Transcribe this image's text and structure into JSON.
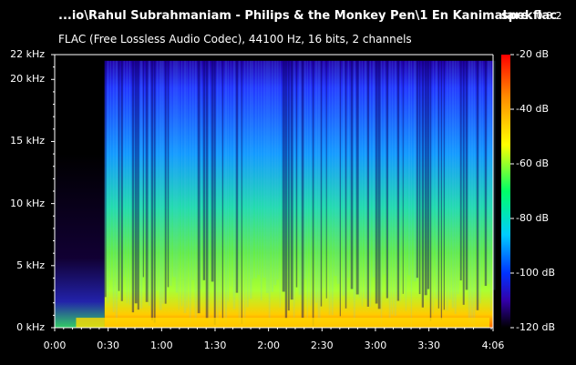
{
  "header": {
    "file_title": "...io\\Rahul Subrahmaniam - Philips & the Monkey Pen\\1 En Kanimalare.flac",
    "app_name": "spek",
    "app_version": "0.8.2",
    "codec_info": "FLAC (Free Lossless Audio Codec), 44100 Hz, 16 bits, 2 channels"
  },
  "frequency_axis": {
    "ticks": [
      "22 kHz",
      "20 kHz",
      "15 kHz",
      "10 kHz",
      "5 kHz",
      "0 kHz"
    ],
    "values_khz": [
      22,
      20,
      15,
      10,
      5,
      0
    ]
  },
  "time_axis": {
    "ticks": [
      "0:00",
      "0:30",
      "1:00",
      "1:30",
      "2:00",
      "2:30",
      "3:00",
      "3:30",
      "4:06"
    ],
    "values_s": [
      0,
      30,
      60,
      90,
      120,
      150,
      180,
      210,
      246
    ]
  },
  "db_scale": {
    "ticks": [
      "-20 dB",
      "-40 dB",
      "-60 dB",
      "-80 dB",
      "-100 dB",
      "-120 dB"
    ],
    "values_db": [
      -20,
      -40,
      -60,
      -80,
      -100,
      -120
    ],
    "colors": [
      "#ff0000",
      "#ff8800",
      "#ffff00",
      "#00ff66",
      "#00ddff",
      "#0044ff",
      "#3300aa",
      "#000000"
    ]
  },
  "colors": {
    "background": "#000000",
    "text": "#ffffff"
  }
}
